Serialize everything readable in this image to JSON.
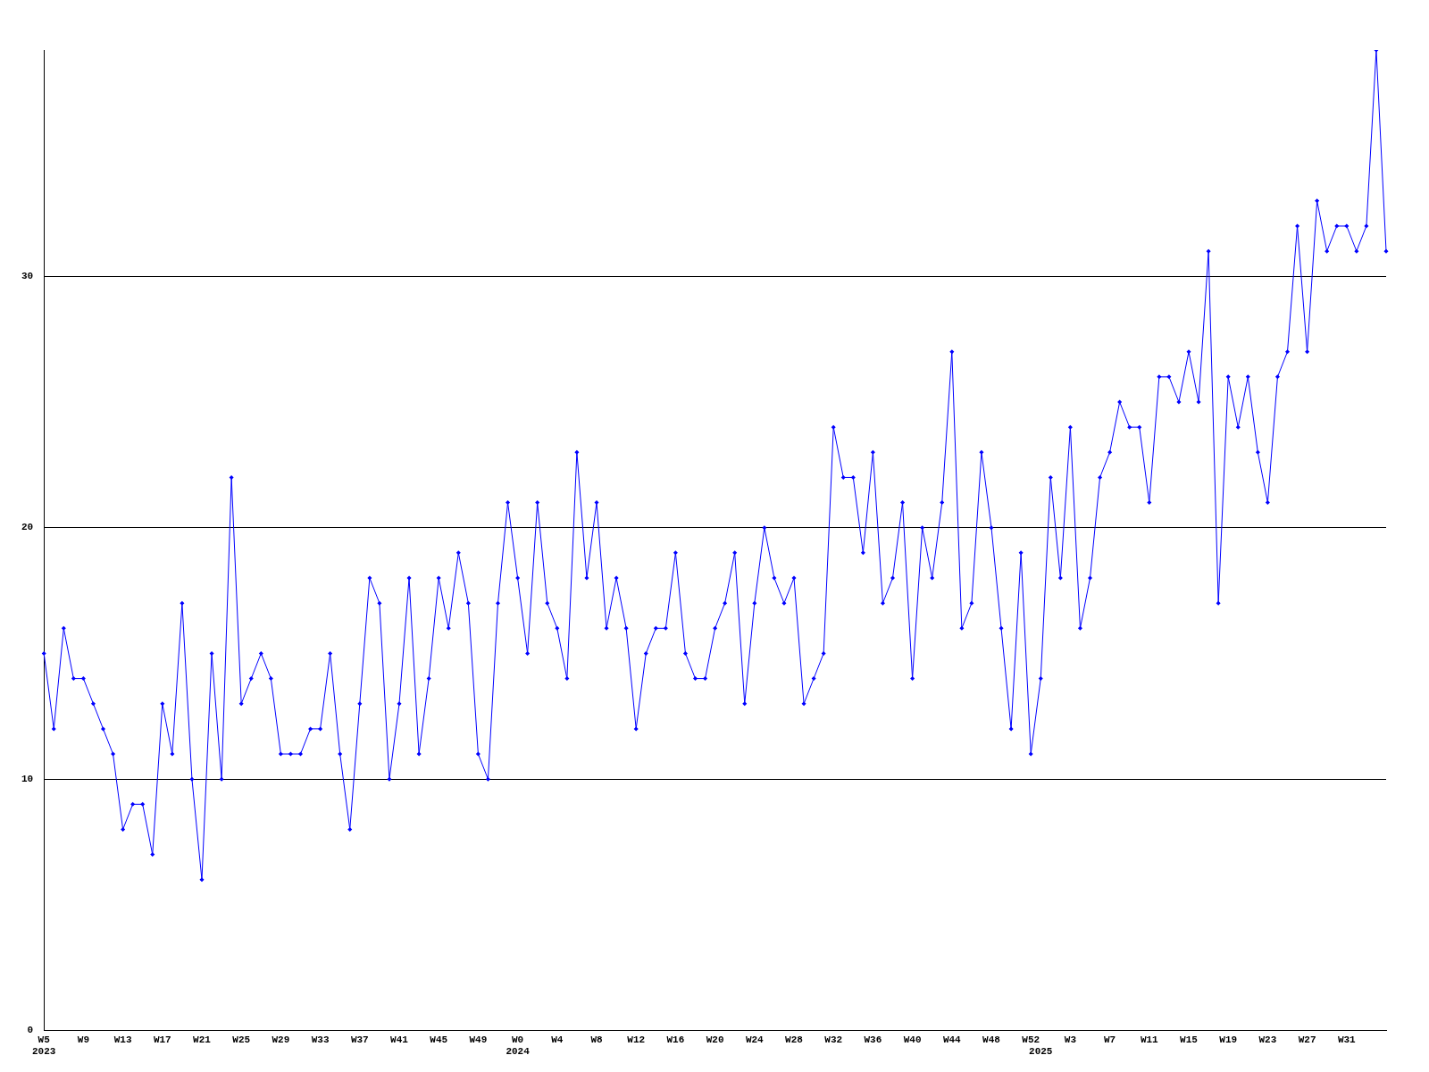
{
  "chart_data": {
    "type": "line",
    "categories": [
      "W5\n2023",
      null,
      null,
      null,
      "W9",
      null,
      null,
      null,
      "W13",
      null,
      null,
      null,
      "W17",
      null,
      null,
      null,
      "W21",
      null,
      null,
      null,
      "W25",
      null,
      null,
      null,
      "W29",
      null,
      null,
      null,
      "W33",
      null,
      null,
      null,
      "W37",
      null,
      null,
      null,
      "W41",
      null,
      null,
      null,
      "W45",
      null,
      null,
      null,
      "W49",
      null,
      null,
      null,
      "W0\n2024",
      null,
      null,
      null,
      "W4",
      null,
      null,
      null,
      "W8",
      null,
      null,
      null,
      "W12",
      null,
      null,
      null,
      "W16",
      null,
      null,
      null,
      "W20",
      null,
      null,
      null,
      "W24",
      null,
      null,
      null,
      "W28",
      null,
      null,
      null,
      "W32",
      null,
      null,
      null,
      "W36",
      null,
      null,
      null,
      "W40",
      null,
      null,
      null,
      "W44",
      null,
      null,
      null,
      "W48",
      null,
      null,
      null,
      "W52",
      "\n2025",
      null,
      null,
      "W3",
      null,
      null,
      null,
      "W7",
      null,
      null,
      null,
      "W11",
      null,
      null,
      null,
      "W15",
      null,
      null,
      null,
      "W19",
      null,
      null,
      null,
      "W23",
      null,
      null,
      null,
      "W27",
      null,
      null,
      null,
      "W31",
      null,
      null,
      null,
      null
    ],
    "series": [
      {
        "color": "#0000ff",
        "values": [
          15,
          12,
          16,
          14,
          14,
          13,
          12,
          11,
          8,
          9,
          9,
          7,
          13,
          11,
          17,
          10,
          6,
          15,
          10,
          22,
          13,
          14,
          15,
          14,
          11,
          11,
          11,
          12,
          12,
          15,
          11,
          8,
          13,
          18,
          17,
          10,
          13,
          18,
          11,
          14,
          18,
          16,
          19,
          17,
          11,
          10,
          17,
          21,
          18,
          15,
          21,
          17,
          16,
          14,
          23,
          18,
          21,
          16,
          18,
          16,
          12,
          15,
          16,
          16,
          19,
          15,
          14,
          14,
          16,
          17,
          19,
          13,
          17,
          20,
          18,
          17,
          18,
          13,
          14,
          15,
          24,
          22,
          22,
          19,
          23,
          17,
          18,
          21,
          14,
          20,
          18,
          21,
          27,
          16,
          17,
          23,
          20,
          16,
          12,
          19,
          11,
          14,
          22,
          18,
          24,
          16,
          18,
          22,
          23,
          25,
          24,
          24,
          21,
          26,
          26,
          25,
          27,
          25,
          31,
          17,
          26,
          24,
          26,
          23,
          21,
          26,
          27,
          32,
          27,
          33,
          31,
          32,
          32,
          31,
          32,
          39,
          31
        ]
      }
    ],
    "ylim": [
      0,
      39
    ],
    "yticks": [
      0,
      10,
      20,
      30
    ],
    "grid": "y",
    "marker": "diamond",
    "line_style": "solid"
  }
}
